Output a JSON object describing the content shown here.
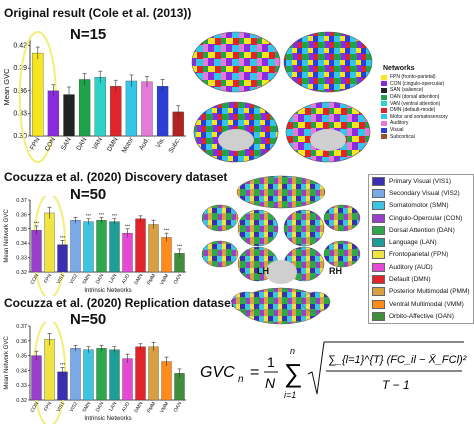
{
  "panels": {
    "original": {
      "title": "Original result (Cole et al. (2013))",
      "n_label": "N=15"
    },
    "discovery": {
      "title": "Cocuzza et al. (2020) Discovery dataset",
      "n_label": "N=50"
    },
    "replication": {
      "title": "Cocuzza et al. (2020) Replication dataset",
      "n_label": "N=50"
    }
  },
  "brain_labels": {
    "left": "LH",
    "right": "RH"
  },
  "networks_legend_small": {
    "title": "Networks",
    "items": [
      {
        "label": "FPN (fronto-parietal)",
        "color": "#f5e61e"
      },
      {
        "label": "CON (cingulo-opercular)",
        "color": "#8a2be2"
      },
      {
        "label": "SAN (salience)",
        "color": "#222222"
      },
      {
        "label": "DAN (dorsal attention)",
        "color": "#1ea34a"
      },
      {
        "label": "VAN (ventral attention)",
        "color": "#2ed3c8"
      },
      {
        "label": "DMN (default-mode)",
        "color": "#e0242a"
      },
      {
        "label": "Motor and somatosensory",
        "color": "#34c6e8"
      },
      {
        "label": "Auditory",
        "color": "#e67ad8"
      },
      {
        "label": "Visual",
        "color": "#2a3fd6"
      },
      {
        "label": "Subcortical",
        "color": "#a0522d"
      }
    ]
  },
  "networks_legend_large": {
    "items": [
      {
        "label": "Primary Visual (VIS1)",
        "color": "#3b2fb0"
      },
      {
        "label": "Secondary Visual (VIS2)",
        "color": "#7aa9e8"
      },
      {
        "label": "Somatomotor (SMN)",
        "color": "#3ec4e0"
      },
      {
        "label": "Cingulo-Opercular (CON)",
        "color": "#9a3fc9"
      },
      {
        "label": "Dorsal Attention (DAN)",
        "color": "#2ea84a"
      },
      {
        "label": "Language (LAN)",
        "color": "#1e9e96"
      },
      {
        "label": "Frontoparietal (FPN)",
        "color": "#f0e442"
      },
      {
        "label": "Auditory (AUD)",
        "color": "#e64ad2"
      },
      {
        "label": "Default (DMN)",
        "color": "#e0242a"
      },
      {
        "label": "Posterior Multimodal (PMM)",
        "color": "#d8a040"
      },
      {
        "label": "Ventral Multimodal (VMM)",
        "color": "#ff8c1a"
      },
      {
        "label": "Orbito-Affective (OAN)",
        "color": "#3f8f3a"
      }
    ]
  },
  "formula": {
    "lhs": "GVC",
    "lhs_sub": "n",
    "equals": "=",
    "frac_num": "1",
    "frac_den": "N",
    "sum_top": "n",
    "sum_bottom": "i=1",
    "inner_numerator": "∑_{l=1}^{T} (FC_il − X̄_FCl)²",
    "inner_denominator": "T − 1"
  },
  "chart_data": [
    {
      "type": "bar",
      "title": "Original result (Cole et al. (2013))",
      "ylabel": "Mean GVC",
      "ylim": [
        0.3,
        0.43
      ],
      "yticks": [
        "0.30",
        "0.33",
        "0.36",
        "0.39",
        "0.42"
      ],
      "yticks_values": [
        0.3,
        0.33,
        0.36,
        0.39,
        0.42
      ],
      "categories": [
        "FPN",
        "CON",
        "SAN",
        "DAN",
        "VAN",
        "DMN",
        "Motor",
        "Aud.",
        "Vis.",
        "Subc."
      ],
      "values": [
        0.41,
        0.36,
        0.355,
        0.375,
        0.378,
        0.366,
        0.373,
        0.372,
        0.366,
        0.332
      ],
      "errors": [
        0.008,
        0.008,
        0.01,
        0.008,
        0.008,
        0.008,
        0.008,
        0.007,
        0.009,
        0.008
      ],
      "colors": [
        "#f5e61e",
        "#8a2be2",
        "#222222",
        "#1ea34a",
        "#2ed3c8",
        "#e0242a",
        "#34c6e8",
        "#e67ad8",
        "#2a3fd6",
        "#b22222"
      ],
      "highlight": "FPN"
    },
    {
      "type": "bar",
      "title": "Cocuzza et al. (2020) Discovery dataset",
      "ylabel": "Mean Network GVC",
      "xlabel": "Intrinsic Networks",
      "ylim": [
        0.32,
        0.37
      ],
      "yticks": [
        "0.32",
        "0.33",
        "0.34",
        "0.35",
        "0.36",
        "0.37"
      ],
      "yticks_values": [
        0.32,
        0.33,
        0.34,
        0.35,
        0.36,
        0.37
      ],
      "categories": [
        "CON",
        "FPN",
        "VIS1",
        "VIS2",
        "SMN",
        "DAN",
        "LAN",
        "AUD",
        "DMN",
        "PMM",
        "VMM",
        "OAN"
      ],
      "values": [
        0.349,
        0.361,
        0.339,
        0.356,
        0.355,
        0.356,
        0.355,
        0.347,
        0.357,
        0.353,
        0.344,
        0.333
      ],
      "errors": [
        0.003,
        0.004,
        0.003,
        0.002,
        0.002,
        0.002,
        0.002,
        0.003,
        0.002,
        0.003,
        0.003,
        0.003
      ],
      "significance": [
        "***",
        "",
        "***",
        "",
        "***",
        "***",
        "***",
        "***",
        "",
        "",
        "***",
        "***"
      ],
      "colors": [
        "#9a3fc9",
        "#f0e442",
        "#3b2fb0",
        "#7aa9e8",
        "#3ec4e0",
        "#2ea84a",
        "#1e9e96",
        "#e64ad2",
        "#e0242a",
        "#d8a040",
        "#ff8c1a",
        "#3f8f3a"
      ],
      "highlight": "FPN"
    },
    {
      "type": "bar",
      "title": "Cocuzza et al. (2020) Replication dataset",
      "ylabel": "Mean Network GVC",
      "xlabel": "Intrinsic Networks",
      "ylim": [
        0.32,
        0.37
      ],
      "yticks": [
        "0.32",
        "0.33",
        "0.34",
        "0.35",
        "0.36",
        "0.37"
      ],
      "yticks_values": [
        0.32,
        0.33,
        0.34,
        0.35,
        0.36,
        0.37
      ],
      "categories": [
        "CON",
        "FPN",
        "VIS1",
        "VIS2",
        "SMN",
        "DAN",
        "LAN",
        "AUD",
        "DMN",
        "PMM",
        "VMM",
        "OAN"
      ],
      "values": [
        0.35,
        0.361,
        0.339,
        0.355,
        0.354,
        0.355,
        0.354,
        0.348,
        0.356,
        0.356,
        0.346,
        0.338
      ],
      "errors": [
        0.003,
        0.004,
        0.003,
        0.002,
        0.002,
        0.002,
        0.002,
        0.003,
        0.002,
        0.003,
        0.003,
        0.003
      ],
      "significance": [
        "",
        "",
        "***",
        "",
        "",
        "",
        "",
        "",
        "",
        "",
        "",
        ""
      ],
      "colors": [
        "#9a3fc9",
        "#f0e442",
        "#3b2fb0",
        "#7aa9e8",
        "#3ec4e0",
        "#2ea84a",
        "#1e9e96",
        "#e64ad2",
        "#e0242a",
        "#d8a040",
        "#ff8c1a",
        "#3f8f3a"
      ],
      "highlight": "FPN"
    }
  ]
}
